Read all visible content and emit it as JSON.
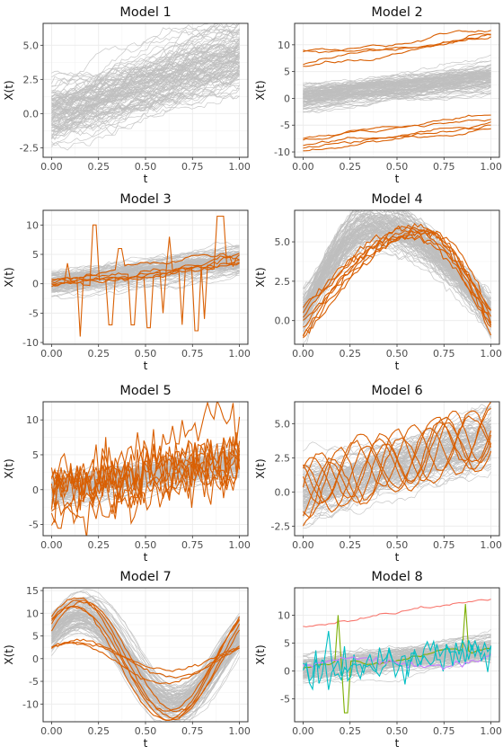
{
  "figure": {
    "type": "faceted functional data line plots",
    "background_series_color": "#bebebe",
    "outlier_color": "#d95f02"
  },
  "chart_data": [
    {
      "type": "line",
      "title": "Model 1",
      "xlabel": "t",
      "ylabel": "X(t)",
      "xlim": [
        0,
        1
      ],
      "ylim": [
        -3.2,
        6.6
      ],
      "xticks": [
        "0.00",
        "0.25",
        "0.50",
        "0.75",
        "1.00"
      ],
      "yticks": [
        -2.5,
        0.0,
        2.5,
        5.0
      ],
      "ytick_labels": [
        "-2.5",
        "0.0",
        "2.5",
        "5.0"
      ],
      "grid": true,
      "legend": "none",
      "background_curves": {
        "count": 100,
        "color": "#bebebe",
        "x": [
          0,
          1
        ],
        "mean_start": 0.0,
        "mean_end": 4.0,
        "noise": "random-walk"
      },
      "outlier_curves": []
    },
    {
      "type": "line",
      "title": "Model 2",
      "xlabel": "t",
      "ylabel": "X(t)",
      "xlim": [
        0,
        1
      ],
      "ylim": [
        -11,
        14
      ],
      "xticks": [
        "0.00",
        "0.25",
        "0.50",
        "0.75",
        "1.00"
      ],
      "yticks": [
        -10,
        -5,
        0,
        5,
        10
      ],
      "ytick_labels": [
        "-10",
        "-5",
        "0",
        "5",
        "10"
      ],
      "grid": true,
      "legend": "none",
      "background_curves": {
        "count": 100,
        "color": "#bebebe",
        "x": [
          0,
          1
        ],
        "mean_start": 0.0,
        "mean_end": 4.0,
        "noise": "random-walk"
      },
      "outlier_curves": [
        {
          "color": "#d95f02",
          "start": 9.0,
          "end": 12.8,
          "style": "smooth"
        },
        {
          "color": "#d95f02",
          "start": 8.7,
          "end": 12.2,
          "style": "smooth"
        },
        {
          "color": "#d95f02",
          "start": 6.3,
          "end": 11.5,
          "style": "smooth"
        },
        {
          "color": "#d95f02",
          "start": 6.0,
          "end": 12.0,
          "style": "smooth"
        },
        {
          "color": "#d95f02",
          "start": -7.5,
          "end": -3.5,
          "style": "smooth"
        },
        {
          "color": "#d95f02",
          "start": -7.8,
          "end": -4.2,
          "style": "smooth"
        },
        {
          "color": "#d95f02",
          "start": -9.3,
          "end": -5.0,
          "style": "smooth"
        },
        {
          "color": "#d95f02",
          "start": -9.8,
          "end": -5.5,
          "style": "smooth"
        },
        {
          "color": "#d95f02",
          "start": -8.8,
          "end": -4.8,
          "style": "smooth"
        }
      ]
    },
    {
      "type": "line",
      "title": "Model 3",
      "xlabel": "t",
      "ylabel": "X(t)",
      "xlim": [
        0,
        1
      ],
      "ylim": [
        -10.3,
        12.5
      ],
      "xticks": [
        "0.00",
        "0.25",
        "0.50",
        "0.75",
        "1.00"
      ],
      "yticks": [
        -10,
        -5,
        0,
        5,
        10
      ],
      "ytick_labels": [
        "-10",
        "-5",
        "0",
        "5",
        "10"
      ],
      "grid": true,
      "legend": "none",
      "background_curves": {
        "count": 100,
        "color": "#bebebe",
        "x": [
          0,
          1
        ],
        "mean_start": 0.0,
        "mean_end": 4.0,
        "noise": "random-walk"
      },
      "outlier_curves": [
        {
          "color": "#d95f02",
          "start": 0.0,
          "end": 4.5,
          "style": "spikes",
          "spikes": [
            [
              0.22,
              0.25,
              10
            ],
            [
              0.5,
              0.53,
              -7.5
            ],
            [
              0.88,
              0.92,
              11.5
            ]
          ]
        },
        {
          "color": "#d95f02",
          "start": 0.5,
          "end": 4.8,
          "style": "spikes",
          "spikes": [
            [
              0.14,
              0.16,
              -9
            ],
            [
              0.42,
              0.45,
              -7
            ],
            [
              0.62,
              0.64,
              8
            ]
          ]
        },
        {
          "color": "#d95f02",
          "start": -0.5,
          "end": 4.2,
          "style": "spikes",
          "spikes": [
            [
              0.3,
              0.33,
              -7
            ],
            [
              0.75,
              0.78,
              -8
            ]
          ]
        },
        {
          "color": "#d95f02",
          "start": 0.3,
          "end": 3.8,
          "style": "spikes",
          "spikes": [
            [
              0.68,
              0.7,
              -7
            ],
            [
              0.8,
              0.82,
              -6
            ]
          ]
        },
        {
          "color": "#d95f02",
          "start": 0.0,
          "end": 4.0,
          "style": "spikes",
          "spikes": [
            [
              0.08,
              0.1,
              3.5
            ],
            [
              0.58,
              0.6,
              -5
            ]
          ]
        },
        {
          "color": "#d95f02",
          "start": 0.8,
          "end": 5.0,
          "style": "spikes",
          "spikes": [
            [
              0.35,
              0.38,
              6
            ],
            [
              0.96,
              0.98,
              3
            ]
          ]
        }
      ]
    },
    {
      "type": "line",
      "title": "Model 4",
      "xlabel": "t",
      "ylabel": "X(t)",
      "xlim": [
        0,
        1
      ],
      "ylim": [
        -1.5,
        7.0
      ],
      "xticks": [
        "0.00",
        "0.25",
        "0.50",
        "0.75",
        "1.00"
      ],
      "yticks": [
        0.0,
        2.5,
        5.0
      ],
      "ytick_labels": [
        "0.0",
        "2.5",
        "5.0"
      ],
      "grid": true,
      "legend": "none",
      "background_curves": {
        "count": 100,
        "color": "#bebebe",
        "x": [
          0,
          1
        ],
        "shape": "hump",
        "peak_t": 0.38,
        "peak_value": 6.0,
        "start": 0.0,
        "end": 0.0
      },
      "outlier_curves": [
        {
          "color": "#d95f02",
          "shape": "hump",
          "peak_t": 0.6,
          "peak_value": 6.0,
          "start": -0.8,
          "end": -0.7
        },
        {
          "color": "#d95f02",
          "shape": "hump",
          "peak_t": 0.62,
          "peak_value": 5.8,
          "start": -0.5,
          "end": -0.4
        },
        {
          "color": "#d95f02",
          "shape": "hump",
          "peak_t": 0.66,
          "peak_value": 5.6,
          "start": -1.2,
          "end": -0.2
        },
        {
          "color": "#d95f02",
          "shape": "hump",
          "peak_t": 0.58,
          "peak_value": 5.9,
          "start": 0.6,
          "end": -0.9
        },
        {
          "color": "#d95f02",
          "shape": "hump",
          "peak_t": 0.55,
          "peak_value": 5.4,
          "start": 0.3,
          "end": 0.0
        },
        {
          "color": "#d95f02",
          "shape": "hump",
          "peak_t": 0.64,
          "peak_value": 5.6,
          "start": 0.8,
          "end": 0.2
        },
        {
          "color": "#d95f02",
          "shape": "hump",
          "peak_t": 0.6,
          "peak_value": 5.3,
          "start": -1.0,
          "end": 0.6
        },
        {
          "color": "#d95f02",
          "shape": "hump",
          "peak_t": 0.68,
          "peak_value": 5.7,
          "start": 0.0,
          "end": 0.5
        }
      ]
    },
    {
      "type": "line",
      "title": "Model 5",
      "xlabel": "t",
      "ylabel": "X(t)",
      "xlim": [
        0,
        1
      ],
      "ylim": [
        -6.6,
        12.6
      ],
      "xticks": [
        "0.00",
        "0.25",
        "0.50",
        "0.75",
        "1.00"
      ],
      "yticks": [
        -5,
        0,
        5,
        10
      ],
      "ytick_labels": [
        "-5",
        "0",
        "5",
        "10"
      ],
      "grid": true,
      "legend": "none",
      "background_curves": {
        "count": 100,
        "color": "#bebebe",
        "x": [
          0,
          1
        ],
        "mean_start": 0.0,
        "mean_end": 4.0,
        "noise": "random-walk"
      },
      "outlier_curves": [
        {
          "color": "#d95f02",
          "start": -1.0,
          "end": 12.0,
          "style": "jagged"
        },
        {
          "color": "#d95f02",
          "start": 0.5,
          "end": 6.0,
          "style": "jagged"
        },
        {
          "color": "#d95f02",
          "start": -2.0,
          "end": 3.5,
          "style": "jagged"
        },
        {
          "color": "#d95f02",
          "start": 1.0,
          "end": 4.5,
          "style": "jagged"
        },
        {
          "color": "#d95f02",
          "start": -5.0,
          "end": 3.0,
          "style": "jagged"
        },
        {
          "color": "#d95f02",
          "start": 0.0,
          "end": 6.5,
          "style": "jagged"
        },
        {
          "color": "#d95f02",
          "start": 2.0,
          "end": 2.5,
          "style": "jagged"
        },
        {
          "color": "#d95f02",
          "start": -0.5,
          "end": 5.0,
          "style": "jagged"
        },
        {
          "color": "#d95f02",
          "start": 1.5,
          "end": 4.0,
          "style": "jagged"
        },
        {
          "color": "#d95f02",
          "start": -3.0,
          "end": 2.0,
          "style": "jagged"
        }
      ]
    },
    {
      "type": "line",
      "title": "Model 6",
      "xlabel": "t",
      "ylabel": "X(t)",
      "xlim": [
        0,
        1
      ],
      "ylim": [
        -3.2,
        6.6
      ],
      "xticks": [
        "0.00",
        "0.25",
        "0.50",
        "0.75",
        "1.00"
      ],
      "yticks": [
        -2.5,
        0.0,
        2.5,
        5.0
      ],
      "ytick_labels": [
        "-2.5",
        "0.0",
        "2.5",
        "5.0"
      ],
      "grid": true,
      "legend": "none",
      "background_curves": {
        "count": 100,
        "color": "#bebebe",
        "x": [
          0,
          1
        ],
        "mean_start": 0.0,
        "mean_end": 4.0,
        "noise": "random-walk"
      },
      "outlier_curves": [
        {
          "color": "#d95f02",
          "start": 0.5,
          "end": 4.5,
          "style": "oscillating",
          "amplitude": 2.0,
          "frequency": 3.0,
          "phase": 0.0
        },
        {
          "color": "#d95f02",
          "start": 0.0,
          "end": 4.0,
          "style": "oscillating",
          "amplitude": 2.0,
          "frequency": 3.0,
          "phase": 1.6
        },
        {
          "color": "#d95f02",
          "start": 1.0,
          "end": 4.2,
          "style": "oscillating",
          "amplitude": 2.2,
          "frequency": 2.5,
          "phase": 3.1
        },
        {
          "color": "#d95f02",
          "start": -0.5,
          "end": 4.8,
          "style": "oscillating",
          "amplitude": 1.8,
          "frequency": 3.5,
          "phase": 4.6
        },
        {
          "color": "#d95f02",
          "start": 0.3,
          "end": 3.8,
          "style": "oscillating",
          "amplitude": 2.1,
          "frequency": 2.8,
          "phase": 0.8
        },
        {
          "color": "#d95f02",
          "start": 0.8,
          "end": 4.4,
          "style": "oscillating",
          "amplitude": 1.9,
          "frequency": 3.2,
          "phase": 2.4
        },
        {
          "color": "#d95f02",
          "start": -0.2,
          "end": 4.0,
          "style": "oscillating",
          "amplitude": 2.0,
          "frequency": 2.7,
          "phase": 5.4
        },
        {
          "color": "#d95f02",
          "start": 0.2,
          "end": 4.6,
          "style": "oscillating",
          "amplitude": 2.2,
          "frequency": 3.3,
          "phase": 3.9
        }
      ]
    },
    {
      "type": "line",
      "title": "Model 7",
      "xlabel": "t",
      "ylabel": "X(t)",
      "xlim": [
        0,
        1
      ],
      "ylim": [
        -13.9,
        15.6
      ],
      "xticks": [
        "0.00",
        "0.25",
        "0.50",
        "0.75",
        "1.00"
      ],
      "yticks": [
        -10,
        -5,
        0,
        5,
        10,
        15
      ],
      "ytick_labels": [
        "-10",
        "-5",
        "0",
        "5",
        "10",
        "15"
      ],
      "grid": true,
      "legend": "none",
      "background_curves": {
        "count": 100,
        "color": "#bebebe",
        "x": [
          0,
          1
        ],
        "shape": "sine",
        "offset": 0.0,
        "amplitude": 10.0,
        "phase_shift": 0.1
      },
      "outlier_curves": [
        {
          "color": "#d95f02",
          "shape": "sine",
          "offset": 0.0,
          "amplitude": 13.5,
          "phase_shift": 0.12
        },
        {
          "color": "#d95f02",
          "shape": "sine",
          "offset": 0.0,
          "amplitude": 13.0,
          "phase_shift": 0.1
        },
        {
          "color": "#d95f02",
          "shape": "sine",
          "offset": -1.0,
          "amplitude": 12.5,
          "phase_shift": 0.14
        },
        {
          "color": "#d95f02",
          "shape": "sine",
          "offset": 0.5,
          "amplitude": 12.0,
          "phase_shift": 0.08
        },
        {
          "color": "#d95f02",
          "shape": "sine",
          "offset": 0.0,
          "amplitude": 4.0,
          "phase_shift": 0.1
        },
        {
          "color": "#d95f02",
          "shape": "sine",
          "offset": 0.5,
          "amplitude": 3.0,
          "phase_shift": 0.12
        },
        {
          "color": "#d95f02",
          "shape": "sine",
          "offset": -1.0,
          "amplitude": 4.5,
          "phase_shift": 0.15
        },
        {
          "color": "#d95f02",
          "shape": "sine",
          "offset": 0.0,
          "amplitude": 11.5,
          "phase_shift": 0.13
        }
      ]
    },
    {
      "type": "line",
      "title": "Model 8",
      "xlabel": "t",
      "ylabel": "X(t)",
      "xlim": [
        0,
        1
      ],
      "ylim": [
        -9.1,
        14.9
      ],
      "xticks": [
        "0.00",
        "0.25",
        "0.50",
        "0.75",
        "1.00"
      ],
      "yticks": [
        -5,
        0,
        5,
        10
      ],
      "ytick_labels": [
        "-5",
        "0",
        "5",
        "10"
      ],
      "grid": true,
      "legend": "none",
      "background_curves": {
        "count": 100,
        "color": "#bebebe",
        "x": [
          0,
          1
        ],
        "mean_start": 0.0,
        "mean_end": 4.0,
        "noise": "random-walk"
      },
      "outlier_curves": [
        {
          "color": "#f8766d",
          "start": 8.0,
          "end": 12.5,
          "style": "smooth"
        },
        {
          "color": "#7cae00",
          "start": 0.5,
          "end": 4.0,
          "style": "spikes",
          "spikes": [
            [
              0.17,
              0.2,
              10
            ],
            [
              0.22,
              0.25,
              -7.5
            ],
            [
              0.85,
              0.88,
              12
            ]
          ]
        },
        {
          "color": "#00bfc4",
          "start": -1.0,
          "end": 4.5,
          "style": "jagged"
        },
        {
          "color": "#c77cff",
          "shape": "hump-linear",
          "start": 0.5,
          "end": 2.5,
          "style": "smooth"
        },
        {
          "color": "#00bfc4",
          "start": 0.0,
          "end": 3.5,
          "style": "jagged"
        }
      ]
    }
  ]
}
